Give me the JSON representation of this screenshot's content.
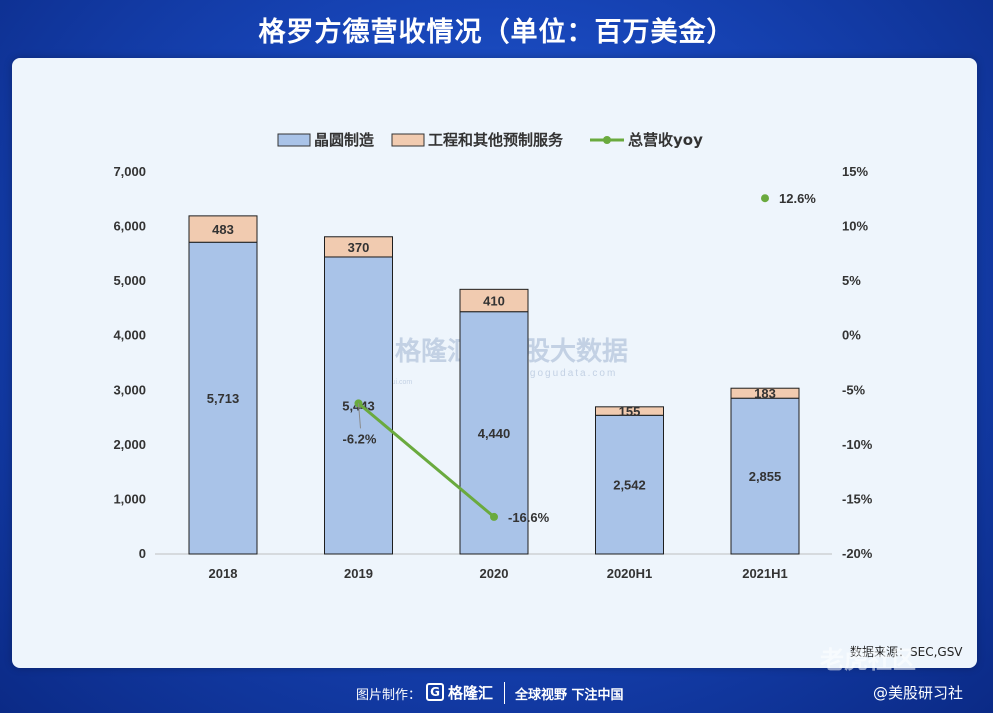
{
  "title": "格罗方德营收情况（单位：百万美金）",
  "source": "数据来源：SEC,GSV",
  "footer": {
    "made_by": "图片制作：",
    "logo_letter": "G",
    "brand": "格隆汇",
    "slogan": "全球视野 下注中国",
    "handle": "@美股研习社"
  },
  "watermark": {
    "brand": "格隆汇",
    "brand_url": "www.gelonghui.com",
    "partner": "勾股大数据",
    "partner_url": "www.gogudata.com",
    "tiger": "老虎社区"
  },
  "chart_data": {
    "type": "bar",
    "stacked": true,
    "categories": [
      "2018",
      "2019",
      "2020",
      "2020H1",
      "2021H1"
    ],
    "series": [
      {
        "name": "晶圆制造",
        "values": [
          5713,
          5443,
          4440,
          2542,
          2855
        ],
        "color": "#a9c3e8"
      },
      {
        "name": "工程和其他预制服务",
        "values": [
          483,
          370,
          410,
          155,
          183
        ],
        "color": "#f1cbb0"
      }
    ],
    "line_series": {
      "name": "总营收yoy",
      "color": "#6aaa3e",
      "points": [
        {
          "category": "2019",
          "value": -6.2,
          "label": "-6.2%"
        },
        {
          "category": "2020",
          "value": -16.6,
          "label": "-16.6%"
        },
        {
          "category": "2021H1",
          "value": 12.6,
          "label": "12.6%"
        }
      ]
    },
    "y_left": {
      "min": 0,
      "max": 7000,
      "ticks": [
        "0",
        "1,000",
        "2,000",
        "3,000",
        "4,000",
        "5,000",
        "6,000",
        "7,000"
      ]
    },
    "y_right": {
      "min": -20,
      "max": 15,
      "ticks": [
        "-20%",
        "-15%",
        "-10%",
        "-5%",
        "0%",
        "5%",
        "10%",
        "15%"
      ]
    },
    "legend_position": "top",
    "grid": false
  }
}
